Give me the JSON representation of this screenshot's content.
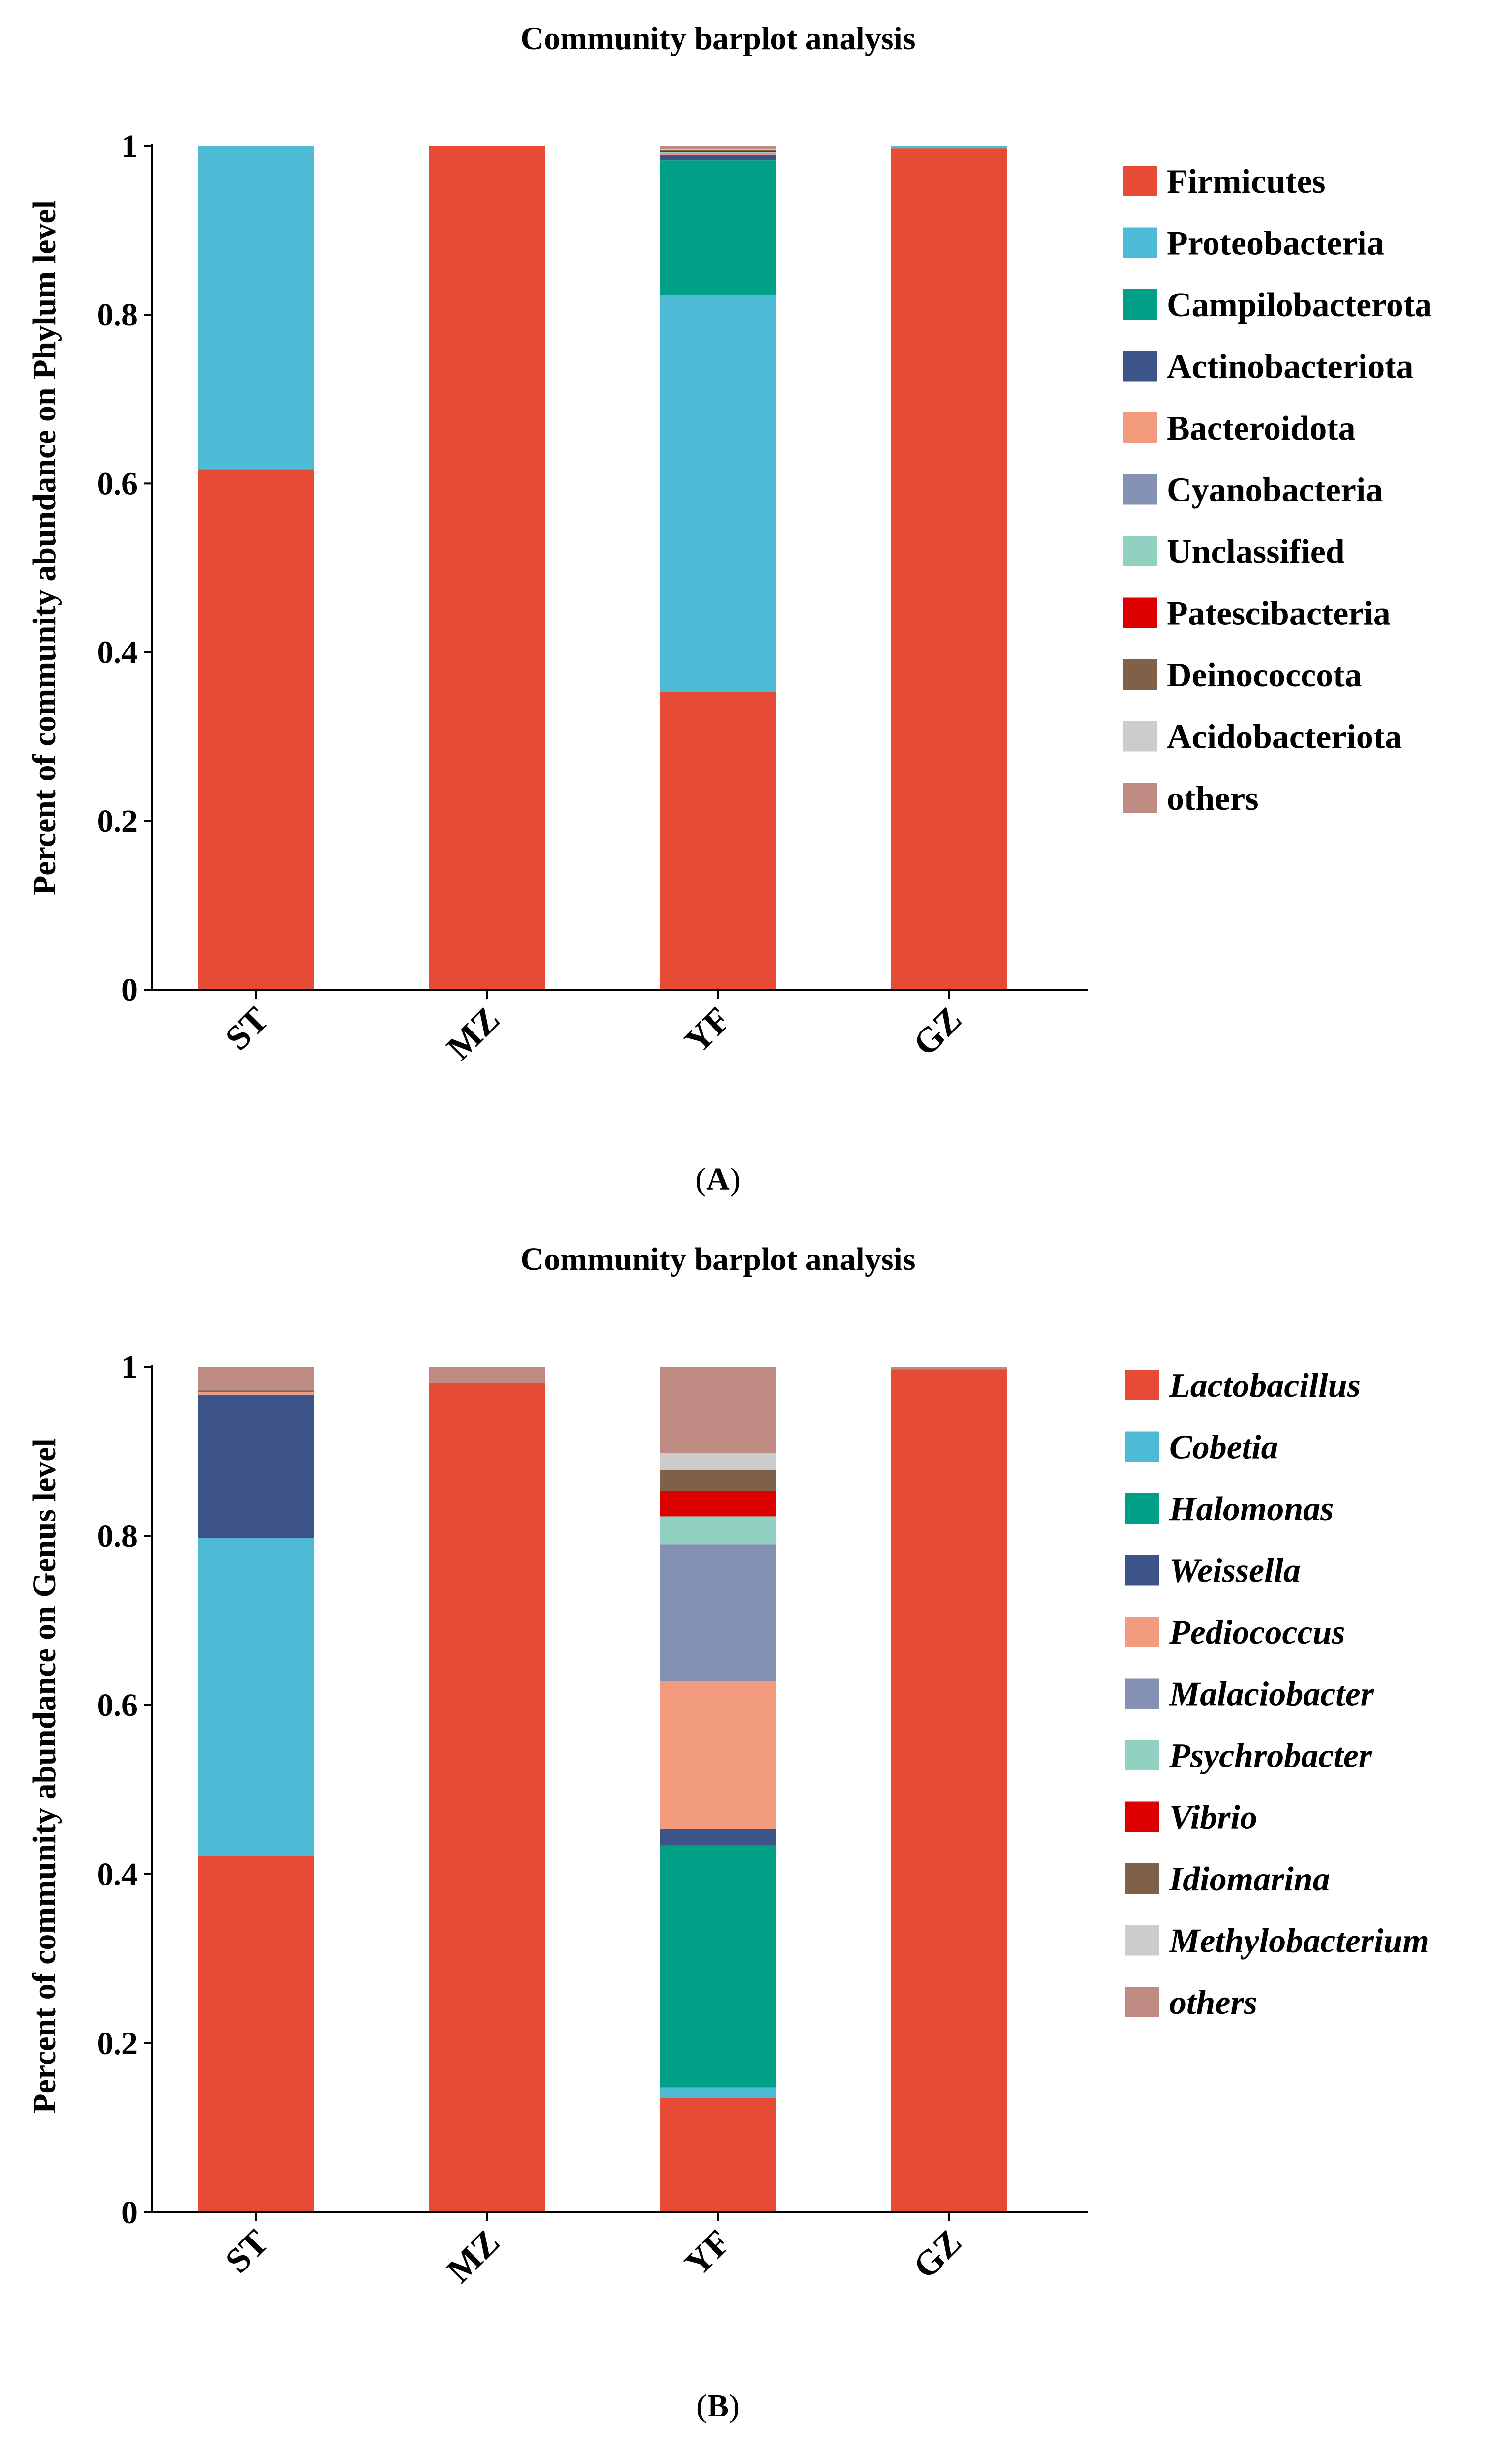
{
  "chart_data": [
    {
      "type": "bar",
      "stacked": true,
      "panel_label": "A",
      "title": "Community barplot analysis",
      "xlabel": "",
      "ylabel": "Percent of community abundance on Phylum level",
      "ylim": [
        0,
        1
      ],
      "yticks": [
        "0",
        "0.2",
        "0.4",
        "0.6",
        "0.8",
        "1"
      ],
      "legend_italic": false,
      "legend_position": "right",
      "categories": [
        "ST",
        "MZ",
        "YF",
        "GZ"
      ],
      "series": [
        {
          "name": "Firmicutes",
          "color": "#E64B35",
          "values": [
            0.617,
            1.0,
            0.353,
            0.997
          ]
        },
        {
          "name": "Proteobacteria",
          "color": "#4DBBD5",
          "values": [
            0.383,
            0.0,
            0.47,
            0.003
          ]
        },
        {
          "name": "Campilobacterota",
          "color": "#00A087",
          "values": [
            0.0,
            0.0,
            0.16,
            0.0
          ]
        },
        {
          "name": "Actinobacteriota",
          "color": "#3C5488",
          "values": [
            0.0,
            0.0,
            0.006,
            0.0
          ]
        },
        {
          "name": "Bacteroidota",
          "color": "#F39B7F",
          "values": [
            0.0,
            0.0,
            0.002,
            0.0
          ]
        },
        {
          "name": "Cyanobacteria",
          "color": "#8491B4",
          "values": [
            0.0,
            0.0,
            0.001,
            0.0
          ]
        },
        {
          "name": "Unclassified",
          "color": "#91D1C2",
          "values": [
            0.0,
            0.0,
            0.001,
            0.0
          ]
        },
        {
          "name": "Patescibacteria",
          "color": "#DC0000",
          "values": [
            0.0,
            0.0,
            0.001,
            0.0
          ]
        },
        {
          "name": "Deinococcota",
          "color": "#7E6148",
          "values": [
            0.0,
            0.0,
            0.001,
            0.0
          ]
        },
        {
          "name": "Acidobacteriota",
          "color": "#CCCCCC",
          "values": [
            0.0,
            0.0,
            0.001,
            0.0
          ]
        },
        {
          "name": "others",
          "color": "#BE8A82",
          "values": [
            0.0,
            0.0,
            0.004,
            0.0
          ]
        }
      ]
    },
    {
      "type": "bar",
      "stacked": true,
      "panel_label": "B",
      "title": "Community barplot analysis",
      "xlabel": "",
      "ylabel": "Percent of community abundance on Genus level",
      "ylim": [
        0,
        1
      ],
      "yticks": [
        "0",
        "0.2",
        "0.4",
        "0.6",
        "0.8",
        "1"
      ],
      "legend_italic": true,
      "legend_position": "right",
      "categories": [
        "ST",
        "MZ",
        "YF",
        "GZ"
      ],
      "series": [
        {
          "name": "Lactobacillus",
          "color": "#E64B35",
          "values": [
            0.422,
            0.981,
            0.135,
            0.997
          ]
        },
        {
          "name": "Cobetia",
          "color": "#4DBBD5",
          "values": [
            0.375,
            0.0,
            0.013,
            0.0
          ]
        },
        {
          "name": "Halomonas",
          "color": "#00A087",
          "values": [
            0.0,
            0.0,
            0.286,
            0.0
          ]
        },
        {
          "name": "Weissella",
          "color": "#3C5488",
          "values": [
            0.17,
            0.0,
            0.019,
            0.0
          ]
        },
        {
          "name": "Pediococcus",
          "color": "#F39B7F",
          "values": [
            0.003,
            0.0,
            0.175,
            0.0
          ]
        },
        {
          "name": "Malaciobacter",
          "color": "#8491B4",
          "values": [
            0.0,
            0.0,
            0.162,
            0.0
          ]
        },
        {
          "name": "Psychrobacter",
          "color": "#91D1C2",
          "values": [
            0.0,
            0.0,
            0.033,
            0.0
          ]
        },
        {
          "name": "Vibrio",
          "color": "#DC0000",
          "values": [
            0.0,
            0.0,
            0.03,
            0.0
          ]
        },
        {
          "name": "Idiomarina",
          "color": "#7E6148",
          "values": [
            0.002,
            0.0,
            0.025,
            0.0
          ]
        },
        {
          "name": "Methylobacterium",
          "color": "#CCCCCC",
          "values": [
            0.0,
            0.0,
            0.02,
            0.0
          ]
        },
        {
          "name": "others",
          "color": "#BE8A82",
          "values": [
            0.028,
            0.019,
            0.102,
            0.003
          ]
        }
      ]
    }
  ]
}
